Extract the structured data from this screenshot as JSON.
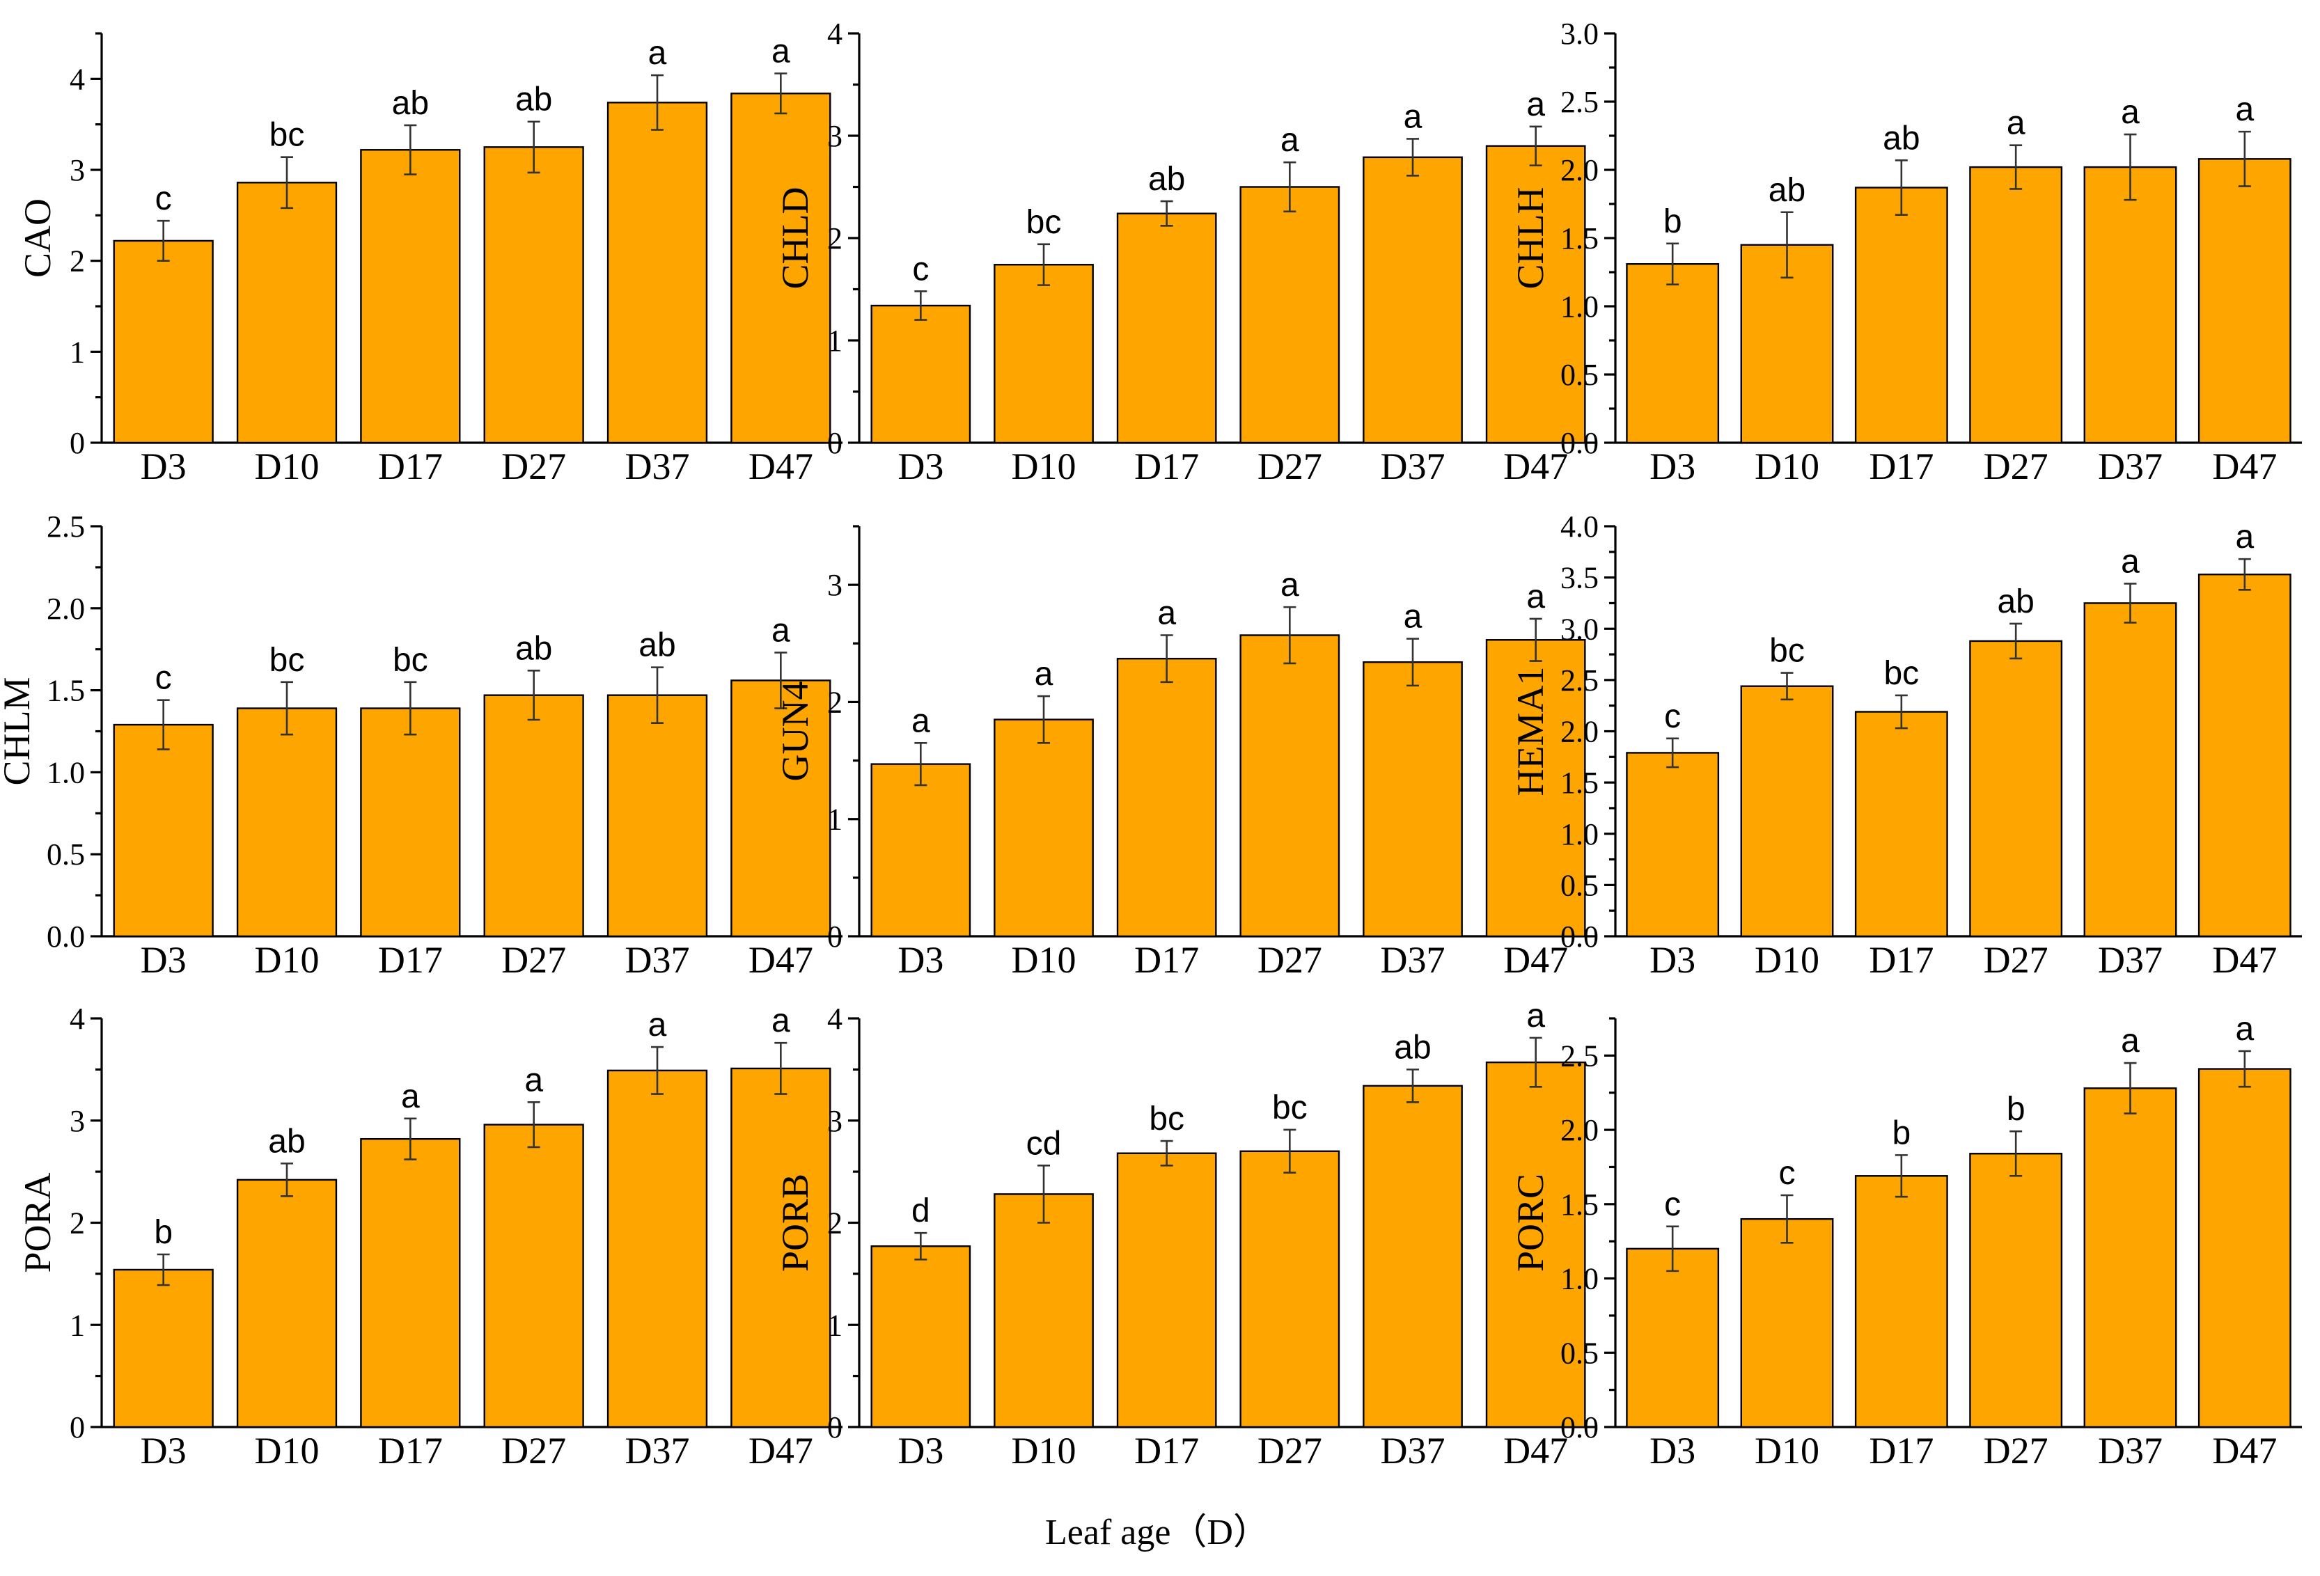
{
  "figure": {
    "xlabel": "Leaf age（D）"
  },
  "chart_data": [
    {
      "type": "bar",
      "ylabel": "CAO",
      "categories": [
        "D3",
        "D10",
        "D17",
        "D27",
        "D37",
        "D47"
      ],
      "values": [
        2.22,
        2.86,
        3.22,
        3.25,
        3.74,
        3.84
      ],
      "errors": [
        0.22,
        0.28,
        0.27,
        0.28,
        0.3,
        0.22
      ],
      "sig": [
        "c",
        "bc",
        "ab",
        "ab",
        "a",
        "a"
      ],
      "ylim": [
        0,
        4.5
      ],
      "yticks": [
        0,
        1,
        2,
        3,
        4
      ],
      "decimals": 0
    },
    {
      "type": "bar",
      "ylabel": "CHLD",
      "categories": [
        "D3",
        "D10",
        "D17",
        "D27",
        "D37",
        "D47"
      ],
      "values": [
        1.34,
        1.74,
        2.24,
        2.5,
        2.79,
        2.9
      ],
      "errors": [
        0.14,
        0.2,
        0.12,
        0.24,
        0.18,
        0.19
      ],
      "sig": [
        "c",
        "bc",
        "ab",
        "a",
        "a",
        "a"
      ],
      "ylim": [
        0,
        4
      ],
      "yticks": [
        0,
        1,
        2,
        3,
        4
      ],
      "decimals": 0
    },
    {
      "type": "bar",
      "ylabel": "CHLH",
      "categories": [
        "D3",
        "D10",
        "D17",
        "D27",
        "D37",
        "D47"
      ],
      "values": [
        1.31,
        1.45,
        1.87,
        2.02,
        2.02,
        2.08
      ],
      "errors": [
        0.15,
        0.24,
        0.2,
        0.16,
        0.24,
        0.2
      ],
      "sig": [
        "b",
        "ab",
        "ab",
        "a",
        "a",
        "a"
      ],
      "ylim": [
        0,
        3.0
      ],
      "yticks": [
        0,
        0.5,
        1.0,
        1.5,
        2.0,
        2.5,
        3.0
      ],
      "decimals": 1
    },
    {
      "type": "bar",
      "ylabel": "CHLM",
      "categories": [
        "D3",
        "D10",
        "D17",
        "D27",
        "D37",
        "D47"
      ],
      "values": [
        1.29,
        1.39,
        1.39,
        1.47,
        1.47,
        1.56
      ],
      "errors": [
        0.15,
        0.16,
        0.16,
        0.15,
        0.17,
        0.17
      ],
      "sig": [
        "c",
        "bc",
        "bc",
        "ab",
        "ab",
        "a"
      ],
      "ylim": [
        0,
        2.5
      ],
      "yticks": [
        0,
        0.5,
        1.0,
        1.5,
        2.0,
        2.5
      ],
      "decimals": 1
    },
    {
      "type": "bar",
      "ylabel": "GUN4",
      "categories": [
        "D3",
        "D10",
        "D17",
        "D27",
        "D37",
        "D47"
      ],
      "values": [
        1.47,
        1.85,
        2.37,
        2.57,
        2.34,
        2.53
      ],
      "errors": [
        0.18,
        0.2,
        0.2,
        0.24,
        0.2,
        0.18
      ],
      "sig": [
        "a",
        "a",
        "a",
        "a",
        "a",
        "a"
      ],
      "ylim": [
        0,
        3.5
      ],
      "yticks": [
        0,
        1,
        2,
        3
      ],
      "decimals": 0
    },
    {
      "type": "bar",
      "ylabel": "HEMA1",
      "categories": [
        "D3",
        "D10",
        "D17",
        "D27",
        "D37",
        "D47"
      ],
      "values": [
        1.79,
        2.44,
        2.19,
        2.88,
        3.25,
        3.53
      ],
      "errors": [
        0.14,
        0.13,
        0.16,
        0.17,
        0.19,
        0.15
      ],
      "sig": [
        "c",
        "bc",
        "bc",
        "ab",
        "a",
        "a"
      ],
      "ylim": [
        0,
        4.0
      ],
      "yticks": [
        0,
        0.5,
        1.0,
        1.5,
        2.0,
        2.5,
        3.0,
        3.5,
        4.0
      ],
      "decimals": 1
    },
    {
      "type": "bar",
      "ylabel": "PORA",
      "categories": [
        "D3",
        "D10",
        "D17",
        "D27",
        "D37",
        "D47"
      ],
      "values": [
        1.54,
        2.42,
        2.82,
        2.96,
        3.49,
        3.51
      ],
      "errors": [
        0.15,
        0.16,
        0.2,
        0.22,
        0.23,
        0.25
      ],
      "sig": [
        "b",
        "ab",
        "a",
        "a",
        "a",
        "a"
      ],
      "ylim": [
        0,
        4
      ],
      "yticks": [
        0,
        1,
        2,
        3,
        4
      ],
      "decimals": 0
    },
    {
      "type": "bar",
      "ylabel": "PORB",
      "categories": [
        "D3",
        "D10",
        "D17",
        "D27",
        "D37",
        "D47"
      ],
      "values": [
        1.77,
        2.28,
        2.68,
        2.7,
        3.34,
        3.57
      ],
      "errors": [
        0.13,
        0.28,
        0.12,
        0.21,
        0.16,
        0.24
      ],
      "sig": [
        "d",
        "cd",
        "bc",
        "bc",
        "ab",
        "a"
      ],
      "ylim": [
        0,
        4
      ],
      "yticks": [
        0,
        1,
        2,
        3,
        4
      ],
      "decimals": 0
    },
    {
      "type": "bar",
      "ylabel": "PORC",
      "categories": [
        "D3",
        "D10",
        "D17",
        "D27",
        "D37",
        "D47"
      ],
      "values": [
        1.2,
        1.4,
        1.69,
        1.84,
        2.28,
        2.41
      ],
      "errors": [
        0.15,
        0.16,
        0.14,
        0.15,
        0.17,
        0.12
      ],
      "sig": [
        "c",
        "c",
        "b",
        "b",
        "a",
        "a"
      ],
      "ylim": [
        0,
        2.75
      ],
      "yticks": [
        0,
        0.5,
        1.0,
        1.5,
        2.0,
        2.5
      ],
      "decimals": 1
    }
  ]
}
